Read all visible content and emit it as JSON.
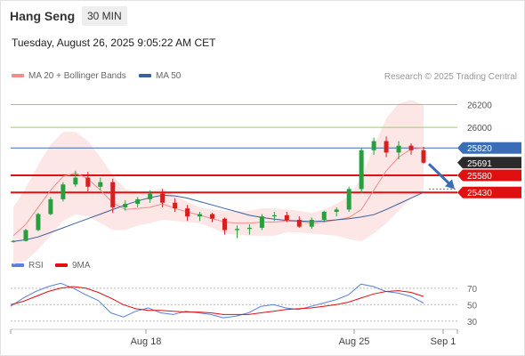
{
  "header": {
    "instrument": "Hang Seng",
    "timeframe": "30 MIN",
    "datetime": "Tuesday, August 26, 2025 9:05:22 AM CET"
  },
  "legend": {
    "bb_label": "MA 20 + Bollinger Bands",
    "ma50_label": "MA 50",
    "credit": "Research © 2025 Trading Central"
  },
  "colors": {
    "bull": "#2a9d3e",
    "bear": "#d32020",
    "bb_fill": "#fde2e2",
    "ma20": "#f28c8c",
    "ma50": "#3b5fa0",
    "support": "#e01010",
    "resistance": "#9ccc65",
    "pivot": "#3a6db5",
    "last_price": "#2b2b2b",
    "rsi": "#5b7fe0",
    "rsi_ma": "#e01010"
  },
  "chart_data": [
    {
      "type": "candlestick",
      "title": "Hang Seng",
      "ylim": [
        24870,
        26360
      ],
      "x_ticks": [
        "Aug 18",
        "Aug 25",
        "Sep 1"
      ],
      "levels": [
        {
          "value": 26200,
          "label": "26200",
          "kind": "resistance"
        },
        {
          "value": 26000,
          "label": "26000",
          "kind": "resistance"
        },
        {
          "value": 25820,
          "label": "25820",
          "kind": "pivot"
        },
        {
          "value": 25691,
          "label": "25691",
          "kind": "last"
        },
        {
          "value": 25580,
          "label": "25580",
          "kind": "support"
        },
        {
          "value": 25430,
          "label": "25430",
          "kind": "support"
        }
      ],
      "forecast": {
        "from": 25680,
        "to": 25460,
        "direction": "down"
      },
      "series": [
        {
          "name": "MA 50",
          "type": "line",
          "values": [
            25000,
            25015,
            25040,
            25080,
            25120,
            25160,
            25200,
            25240,
            25280,
            25320,
            25355,
            25385,
            25405,
            25400,
            25380,
            25350,
            25320,
            25290,
            25260,
            25230,
            25210,
            25195,
            25185,
            25180,
            25175,
            25180,
            25190,
            25200,
            25215,
            25235,
            25280,
            25330,
            25380,
            25430
          ]
        },
        {
          "name": "MA 20",
          "type": "line",
          "values": [
            25050,
            25150,
            25300,
            25450,
            25570,
            25600,
            25550,
            25450,
            25340,
            25280,
            25290,
            25300,
            25330,
            25290,
            25260,
            25230,
            25200,
            25170,
            25160,
            25160,
            25170,
            25170,
            25180,
            25175,
            25160,
            25170,
            25190,
            25210,
            25280,
            25450,
            25620,
            25740,
            25810,
            25820
          ]
        },
        {
          "name": "BB Upper",
          "type": "band",
          "values": [
            25300,
            25470,
            25670,
            25850,
            25960,
            25960,
            25880,
            25740,
            25580,
            25460,
            25440,
            25440,
            25470,
            25400,
            25350,
            25300,
            25280,
            25270,
            25260,
            25270,
            25290,
            25290,
            25280,
            25270,
            25250,
            25280,
            25330,
            25400,
            25560,
            25830,
            26080,
            26210,
            26240,
            26200
          ]
        },
        {
          "name": "BB Lower",
          "type": "band",
          "values": [
            24800,
            24830,
            24930,
            25050,
            25180,
            25240,
            25220,
            25160,
            25100,
            25100,
            25140,
            25160,
            25190,
            25180,
            25170,
            25160,
            25120,
            25070,
            25060,
            25050,
            25050,
            25050,
            25080,
            25080,
            25070,
            25060,
            25050,
            25020,
            25000,
            25070,
            25160,
            25270,
            25380,
            25440
          ]
        },
        {
          "name": "Price",
          "type": "candles",
          "ohlc": [
            [
              25000,
              25010,
              24990,
              25005
            ],
            [
              25005,
              25110,
              25000,
              25100
            ],
            [
              25100,
              25250,
              25090,
              25240
            ],
            [
              25240,
              25390,
              25230,
              25370
            ],
            [
              25370,
              25520,
              25350,
              25500
            ],
            [
              25500,
              25620,
              25480,
              25560
            ],
            [
              25560,
              25610,
              25440,
              25480
            ],
            [
              25480,
              25560,
              25450,
              25520
            ],
            [
              25520,
              25550,
              25250,
              25300
            ],
            [
              25300,
              25360,
              25270,
              25330
            ],
            [
              25330,
              25390,
              25300,
              25370
            ],
            [
              25370,
              25450,
              25340,
              25420
            ],
            [
              25420,
              25460,
              25300,
              25340
            ],
            [
              25340,
              25380,
              25260,
              25290
            ],
            [
              25290,
              25320,
              25180,
              25220
            ],
            [
              25220,
              25260,
              25180,
              25240
            ],
            [
              25240,
              25250,
              25170,
              25200
            ],
            [
              25200,
              25210,
              25060,
              25100
            ],
            [
              25100,
              25140,
              25030,
              25110
            ],
            [
              25110,
              25150,
              25060,
              25120
            ],
            [
              25120,
              25240,
              25100,
              25220
            ],
            [
              25220,
              25260,
              25180,
              25230
            ],
            [
              25230,
              25260,
              25170,
              25190
            ],
            [
              25190,
              25220,
              25120,
              25130
            ],
            [
              25130,
              25210,
              25110,
              25190
            ],
            [
              25190,
              25270,
              25170,
              25260
            ],
            [
              25260,
              25300,
              25220,
              25280
            ],
            [
              25280,
              25480,
              25260,
              25460
            ],
            [
              25460,
              25820,
              25420,
              25800
            ],
            [
              25800,
              25910,
              25760,
              25880
            ],
            [
              25880,
              25920,
              25740,
              25780
            ],
            [
              25780,
              25880,
              25720,
              25840
            ],
            [
              25840,
              25860,
              25760,
              25800
            ],
            [
              25800,
              25830,
              25680,
              25691
            ]
          ]
        }
      ]
    },
    {
      "type": "line",
      "title": "RSI",
      "ylim": [
        20,
        85
      ],
      "y_ticks": [
        70,
        50,
        30
      ],
      "series": [
        {
          "name": "RSI",
          "values": [
            48,
            58,
            66,
            72,
            76,
            70,
            62,
            55,
            40,
            35,
            42,
            46,
            40,
            38,
            42,
            40,
            38,
            34,
            36,
            40,
            48,
            50,
            46,
            44,
            48,
            52,
            56,
            62,
            75,
            72,
            66,
            64,
            60,
            52
          ]
        },
        {
          "name": "9MA",
          "values": [
            50,
            54,
            60,
            66,
            70,
            72,
            70,
            65,
            58,
            50,
            45,
            43,
            43,
            42,
            41,
            41,
            40,
            38,
            38,
            38,
            40,
            42,
            44,
            45,
            46,
            48,
            50,
            53,
            58,
            63,
            66,
            67,
            65,
            60
          ]
        }
      ]
    }
  ]
}
